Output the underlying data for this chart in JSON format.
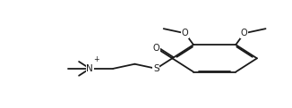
{
  "bg_color": "#ffffff",
  "line_color": "#1a1a1a",
  "line_width": 1.3,
  "dbo": 0.007,
  "figsize": [
    3.26,
    1.21
  ],
  "dpi": 100,
  "font_size": 7.0,
  "xlim": [
    0,
    1
  ],
  "ylim": [
    0,
    1
  ]
}
